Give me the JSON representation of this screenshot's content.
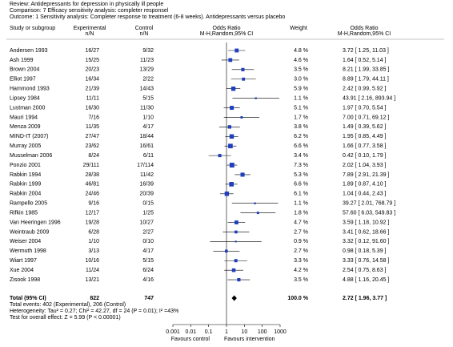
{
  "chart_data": {
    "type": "forest",
    "header": {
      "review": "Review:  Antidepressants for depression in physically ill people",
      "comparison": "Comparison:  7 Efficacy sensitivity analysis: completer responsel",
      "outcome": "Outcome:  1 Sensitivity analysis: Completer response to treatment (6-8 weeks). Antidepressants versus placebo"
    },
    "columns": {
      "study": "Study or subgroup",
      "experimental": "Experimental",
      "experimental_unit": "n/N",
      "control": "Control",
      "control_unit": "n/N",
      "plot": "Odds Ratio",
      "plot_method": "M-H,Random,95% CI",
      "weight": "Weight",
      "estimate": "Odds Ratio",
      "estimate_method": "M-H,Random,95% CI"
    },
    "categories": [
      "Andersen 1993",
      "Ash 1999",
      "Brown 2004",
      "Elliot 1997",
      "Hammond 1993",
      "Lipsey 1984",
      "Lustman 2000",
      "Mauri 1994",
      "Menza 2009",
      "MIND-IT (2007)",
      "Murray 2005",
      "Musselman 2006",
      "Ponzio 2001",
      "Rabkin 1994",
      "Rabkin 1999",
      "Rabkin 2004",
      "Rampello 2005",
      "Rifkin 1985",
      "Van Heeringen 1996",
      "Weintraub 2009",
      "Weiser 2004",
      "Wermuth 1998",
      "Wiart 1997",
      "Xue 2004",
      "Zisook 1998"
    ],
    "experimental": [
      "16/27",
      "15/25",
      "20/23",
      "16/34",
      "21/39",
      "11/11",
      "16/30",
      "7/16",
      "11/35",
      "27/47",
      "23/62",
      "8/24",
      "29/111",
      "28/38",
      "46/81",
      "24/46",
      "9/16",
      "12/17",
      "19/28",
      "6/28",
      "1/10",
      "3/13",
      "10/16",
      "11/24",
      "13/21"
    ],
    "control": [
      "9/32",
      "11/23",
      "13/29",
      "2/22",
      "14/43",
      "5/15",
      "11/30",
      "1/10",
      "4/17",
      "18/44",
      "16/61",
      "6/11",
      "17/114",
      "11/42",
      "16/39",
      "20/39",
      "0/15",
      "1/25",
      "10/27",
      "2/27",
      "0/10",
      "4/17",
      "5/15",
      "6/24",
      "4/16"
    ],
    "weights": [
      4.8,
      4.6,
      3.5,
      3.0,
      5.9,
      1.1,
      5.1,
      1.7,
      3.8,
      6.2,
      6.6,
      3.4,
      7.3,
      5.3,
      6.6,
      6.1,
      1.1,
      1.8,
      4.7,
      2.7,
      0.9,
      2.7,
      3.3,
      4.2,
      3.5
    ],
    "weight_labels": [
      "4.8 %",
      "4.6 %",
      "3.5 %",
      "3.0 %",
      "5.9 %",
      "1.1 %",
      "5.1 %",
      "1.7 %",
      "3.8 %",
      "6.2 %",
      "6.6 %",
      "3.4 %",
      "7.3 %",
      "5.3 %",
      "6.6 %",
      "6.1 %",
      "1.1 %",
      "1.8 %",
      "4.7 %",
      "2.7 %",
      "0.9 %",
      "2.7 %",
      "3.3 %",
      "4.2 %",
      "3.5 %"
    ],
    "values": [
      3.72,
      1.64,
      8.21,
      8.89,
      2.42,
      43.91,
      1.97,
      7.0,
      1.49,
      1.95,
      1.66,
      0.42,
      2.02,
      7.89,
      1.89,
      1.04,
      39.27,
      57.6,
      3.59,
      3.41,
      3.32,
      0.98,
      3.33,
      2.54,
      4.88
    ],
    "lower": [
      1.25,
      0.52,
      1.99,
      1.79,
      0.99,
      2.16,
      0.7,
      0.71,
      0.39,
      0.85,
      0.77,
      0.1,
      1.04,
      2.91,
      0.87,
      0.44,
      2.01,
      6.03,
      1.18,
      0.62,
      0.12,
      0.18,
      0.76,
      0.75,
      1.16
    ],
    "upper": [
      11.03,
      5.14,
      33.85,
      44.11,
      5.92,
      893.94,
      5.54,
      69.12,
      5.62,
      4.49,
      3.58,
      1.79,
      3.93,
      21.39,
      4.1,
      2.43,
      768.79,
      549.83,
      10.92,
      18.66,
      91.6,
      5.39,
      14.58,
      8.63,
      20.45
    ],
    "value_labels": [
      "3.72 [ 1.25, 11.03 ]",
      "1.64 [ 0.52, 5.14 ]",
      "8.21 [ 1.99, 33.85 ]",
      "8.89 [ 1.79, 44.11 ]",
      "2.42 [ 0.99, 5.92 ]",
      "43.91 [ 2.16, 893.94 ]",
      "1.97 [ 0.70, 5.54 ]",
      "7.00 [ 0.71, 69.12 ]",
      "1.49 [ 0.39, 5.62 ]",
      "1.95 [ 0.85, 4.49 ]",
      "1.66 [ 0.77, 3.58 ]",
      "0.42 [ 0.10, 1.79 ]",
      "2.02 [ 1.04, 3.93 ]",
      "7.89 [ 2.91, 21.39 ]",
      "1.89 [ 0.87, 4.10 ]",
      "1.04 [ 0.44, 2.43 ]",
      "39.27 [ 2.01, 768.79 ]",
      "57.60 [ 6.03, 549.83 ]",
      "3.59 [ 1.18, 10.92 ]",
      "3.41 [ 0.62, 18.66 ]",
      "3.32 [ 0.12, 91.60 ]",
      "0.98 [ 0.18, 5.39 ]",
      "3.33 [ 0.76, 14.58 ]",
      "2.54 [ 0.75, 8.63 ]",
      "4.88 [ 1.16, 20.45 ]"
    ],
    "total": {
      "name": "Total (95% CI)",
      "experimental": "822",
      "control": "747",
      "weight": 100.0,
      "weight_label": "100.0 %",
      "value": 2.72,
      "lower": 1.96,
      "upper": 3.77,
      "value_label": "2.72 [ 1.96, 3.77 ]"
    },
    "notes": [
      "Total events: 402 (Experimental), 206 (Control)",
      "Heterogeneity: Tau² = 0.27; Chi² = 42.27, df = 24 (P = 0.01); I² =43%",
      "Test for overall effect: Z = 5.99 (P < 0.00001)"
    ],
    "xlim": [
      0.001,
      1000
    ],
    "xticks": [
      0.001,
      0.01,
      0.1,
      1,
      10,
      100,
      1000
    ],
    "log_x": true,
    "favours_left": "Favours control",
    "favours_right": "Favours intervention",
    "color": "#1f3fbf",
    "total_color": "#000000"
  }
}
